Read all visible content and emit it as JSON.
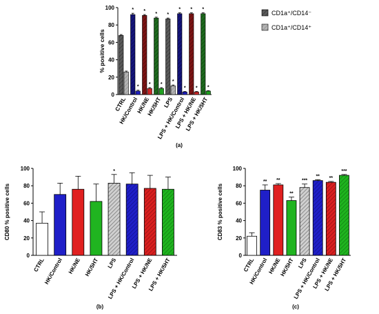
{
  "colors": {
    "gray_dark": "#555555",
    "gray_light": "#a8a8a8",
    "navy": "#14147a",
    "maroon": "#7a1414",
    "forest": "#1f6a1f",
    "blue": "#1f1fc8",
    "red": "#d92020",
    "green": "#1fb41f",
    "white": "#ffffff",
    "hatch_gray": "#8a8a8a"
  },
  "chart_data": [
    {
      "id": "a",
      "type": "bar",
      "panel_label": "(a)",
      "ylabel": "% positive cells",
      "ylim": [
        0,
        100
      ],
      "yticks": [
        "0",
        "20",
        "40",
        "60",
        "80",
        "100"
      ],
      "categories": [
        "CTRL",
        "HK/Control",
        "HK/NE",
        "HK/5HT",
        "LPS",
        "LPS + HK/Control",
        "LPS + HK/NE",
        "LPS + HK/5HT"
      ],
      "legend": [
        {
          "label": "CD1a⁺/CD14⁻",
          "icon": "dark-gray-hatched-square"
        },
        {
          "label": "CD1a⁺/CD14⁺",
          "icon": "light-gray-square"
        }
      ],
      "series": [
        {
          "values": [
            68,
            92,
            91,
            88,
            87,
            93,
            93,
            93
          ],
          "errors": [
            1,
            1.5,
            1,
            1,
            1,
            1,
            1,
            1
          ],
          "markers": [
            "",
            "*",
            "*",
            "*",
            "*",
            "*",
            "*",
            "*"
          ]
        },
        {
          "values": [
            26,
            4,
            7,
            7,
            10,
            3,
            3,
            4
          ],
          "errors": [
            1,
            1,
            1,
            1,
            1,
            0.5,
            0.5,
            0.5
          ],
          "markers": [
            "",
            "*",
            "*",
            "*",
            "*",
            "*",
            "*",
            "*"
          ]
        }
      ]
    },
    {
      "id": "b",
      "type": "bar",
      "panel_label": "(b)",
      "ylabel": "CD80 % positive cells",
      "ylim": [
        0,
        100
      ],
      "yticks": [
        "0",
        "20",
        "40",
        "60",
        "80",
        "100"
      ],
      "categories": [
        "CTRL",
        "HK/Control",
        "HK/NE",
        "HK/5HT",
        "LPS",
        "LPS + HK/Control",
        "LPS + HK/NE",
        "LPS + HK/5HT"
      ],
      "values": [
        37,
        70,
        76,
        62,
        83,
        82,
        77,
        76
      ],
      "errors": [
        13,
        13,
        15,
        20,
        10,
        13,
        15,
        14
      ],
      "markers": [
        "",
        "",
        "",
        "",
        "*",
        "",
        "",
        ""
      ]
    },
    {
      "id": "c",
      "type": "bar",
      "panel_label": "(c)",
      "ylabel": "CD83 % positive cells",
      "ylim": [
        0,
        100
      ],
      "yticks": [
        "0",
        "20",
        "40",
        "60",
        "80",
        "100"
      ],
      "categories": [
        "CTRL",
        "HK/Control",
        "HK/NE",
        "HK/5HT",
        "LPS",
        "LPS + HK/Control",
        "LPS + HK/NE",
        "LPS + HK/5HT"
      ],
      "values": [
        22,
        75,
        81,
        63,
        78,
        86,
        84,
        92
      ],
      "errors": [
        4,
        6,
        1.5,
        4,
        4,
        1,
        1,
        1
      ],
      "markers": [
        "",
        "**",
        "**",
        "**",
        "***",
        "**",
        "**",
        "***"
      ]
    }
  ]
}
